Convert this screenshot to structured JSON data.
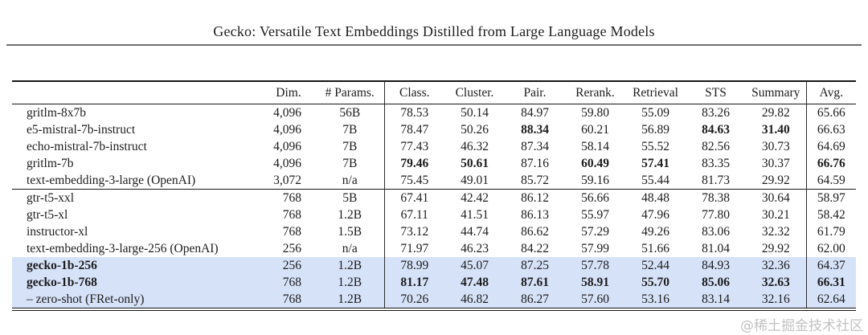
{
  "page": {
    "title": "Gecko: Versatile Text Embeddings Distilled from Large Language Models",
    "watermark": "@稀土掘金技术社区"
  },
  "table": {
    "columns": [
      "",
      "Dim.",
      "# Params.",
      "Class.",
      "Cluster.",
      "Pair.",
      "Rerank.",
      "Retrieval",
      "STS",
      "Summary",
      "Avg."
    ],
    "highlight_color": "#d6e2f8",
    "groups": [
      {
        "rows": [
          {
            "name": "gritlm-8x7b",
            "name_bold": false,
            "highlight": false,
            "values": [
              "4,096",
              "56B",
              "78.53",
              "50.14",
              "84.97",
              "59.80",
              "55.09",
              "83.26",
              "29.82",
              "65.66"
            ],
            "bold_values": []
          },
          {
            "name": "e5-mistral-7b-instruct",
            "name_bold": false,
            "highlight": false,
            "values": [
              "4,096",
              "7B",
              "78.47",
              "50.26",
              "88.34",
              "60.21",
              "56.89",
              "84.63",
              "31.40",
              "66.63"
            ],
            "bold_values": [
              4,
              7,
              8
            ]
          },
          {
            "name": "echo-mistral-7b-instruct",
            "name_bold": false,
            "highlight": false,
            "values": [
              "4,096",
              "7B",
              "77.43",
              "46.32",
              "87.34",
              "58.14",
              "55.52",
              "82.56",
              "30.73",
              "64.69"
            ],
            "bold_values": []
          },
          {
            "name": "gritlm-7b",
            "name_bold": false,
            "highlight": false,
            "values": [
              "4,096",
              "7B",
              "79.46",
              "50.61",
              "87.16",
              "60.49",
              "57.41",
              "83.35",
              "30.37",
              "66.76"
            ],
            "bold_values": [
              2,
              3,
              5,
              6,
              9
            ]
          },
          {
            "name": "text-embedding-3-large (OpenAI)",
            "name_bold": false,
            "highlight": false,
            "values": [
              "3,072",
              "n/a",
              "75.45",
              "49.01",
              "85.72",
              "59.16",
              "55.44",
              "81.73",
              "29.92",
              "64.59"
            ],
            "bold_values": []
          }
        ]
      },
      {
        "rows": [
          {
            "name": "gtr-t5-xxl",
            "name_bold": false,
            "highlight": false,
            "values": [
              "768",
              "5B",
              "67.41",
              "42.42",
              "86.12",
              "56.66",
              "48.48",
              "78.38",
              "30.64",
              "58.97"
            ],
            "bold_values": []
          },
          {
            "name": "gtr-t5-xl",
            "name_bold": false,
            "highlight": false,
            "values": [
              "768",
              "1.2B",
              "67.11",
              "41.51",
              "86.13",
              "55.97",
              "47.96",
              "77.80",
              "30.21",
              "58.42"
            ],
            "bold_values": []
          },
          {
            "name": "instructor-xl",
            "name_bold": false,
            "highlight": false,
            "values": [
              "768",
              "1.5B",
              "73.12",
              "44.74",
              "86.62",
              "57.29",
              "49.26",
              "83.06",
              "32.32",
              "61.79"
            ],
            "bold_values": []
          },
          {
            "name": "text-embedding-3-large-256 (OpenAI)",
            "name_bold": false,
            "highlight": false,
            "values": [
              "256",
              "n/a",
              "71.97",
              "46.23",
              "84.22",
              "57.99",
              "51.66",
              "81.04",
              "29.92",
              "62.00"
            ],
            "bold_values": []
          },
          {
            "name": "gecko-1b-256",
            "name_bold": true,
            "highlight": true,
            "values": [
              "256",
              "1.2B",
              "78.99",
              "45.07",
              "87.25",
              "57.78",
              "52.44",
              "84.93",
              "32.36",
              "64.37"
            ],
            "bold_values": []
          },
          {
            "name": "gecko-1b-768",
            "name_bold": true,
            "highlight": true,
            "values": [
              "768",
              "1.2B",
              "81.17",
              "47.48",
              "87.61",
              "58.91",
              "55.70",
              "85.06",
              "32.63",
              "66.31"
            ],
            "bold_values": [
              2,
              3,
              4,
              5,
              6,
              7,
              8,
              9
            ]
          },
          {
            "name": "– zero-shot (FRet-only)",
            "name_bold": false,
            "highlight": false,
            "highlight_override": true,
            "highlight2": true,
            "highlight_flag": true,
            "highlightRow": true,
            "hl": true,
            "values": [
              "768",
              "1.2B",
              "70.26",
              "46.82",
              "86.27",
              "57.60",
              "53.16",
              "83.14",
              "32.16",
              "62.64"
            ],
            "bold_values": []
          }
        ]
      }
    ]
  }
}
